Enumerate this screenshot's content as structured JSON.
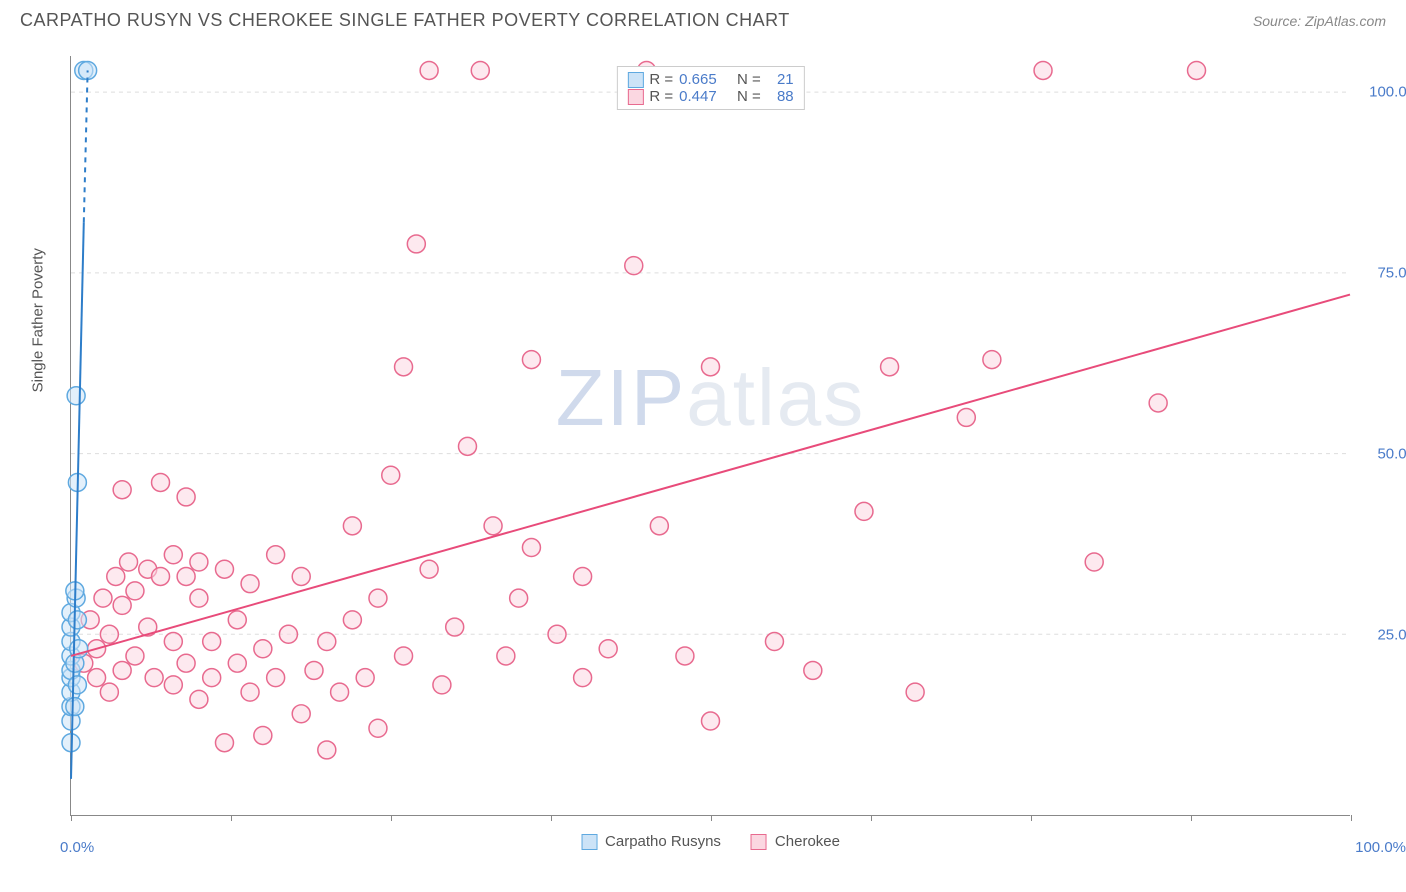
{
  "title": "CARPATHO RUSYN VS CHEROKEE SINGLE FATHER POVERTY CORRELATION CHART",
  "source_label": "Source:",
  "source_name": "ZipAtlas.com",
  "y_axis_label": "Single Father Poverty",
  "watermark": {
    "zip": "ZIP",
    "atlas": "atlas"
  },
  "xlim": [
    0,
    100
  ],
  "ylim": [
    0,
    105
  ],
  "x_ticks": [
    0,
    12.5,
    25,
    37.5,
    50,
    62.5,
    75,
    87.5,
    100
  ],
  "x_tick_labels": {
    "0": "0.0%",
    "100": "100.0%"
  },
  "y_ticks": [
    25,
    50,
    75,
    100
  ],
  "y_tick_labels": {
    "25": "25.0%",
    "50": "50.0%",
    "75": "75.0%",
    "100": "100.0%"
  },
  "grid_color": "#dddddd",
  "axis_color": "#888888",
  "text_color": "#555555",
  "tick_label_color": "#4a7bc9",
  "series": {
    "a": {
      "label": "Carpatho Rusyns",
      "fill": "#cce3f7",
      "stroke": "#5fa9e0",
      "line_color": "#2d7dc9",
      "r_value": "0.665",
      "n_value": "21",
      "trend": {
        "x1": 0,
        "y1": 5,
        "x2": 1.0,
        "y2": 82,
        "x2_dash": 1.3,
        "y2_dash": 103
      },
      "points": [
        [
          0,
          10
        ],
        [
          0,
          13
        ],
        [
          0,
          15
        ],
        [
          0,
          17
        ],
        [
          0,
          19
        ],
        [
          0,
          20
        ],
        [
          0,
          22
        ],
        [
          0,
          24
        ],
        [
          0,
          26
        ],
        [
          0,
          28
        ],
        [
          0.4,
          30
        ],
        [
          0.3,
          21
        ],
        [
          0.5,
          18
        ],
        [
          0.3,
          15
        ],
        [
          0.6,
          23
        ],
        [
          0.5,
          27
        ],
        [
          0.3,
          31
        ],
        [
          0.5,
          46
        ],
        [
          0.4,
          58
        ],
        [
          1.0,
          103
        ],
        [
          1.3,
          103
        ]
      ]
    },
    "b": {
      "label": "Cherokee",
      "fill": "#fbd7e1",
      "stroke": "#e86a8f",
      "line_color": "#e84b7a",
      "r_value": "0.447",
      "n_value": "88",
      "trend": {
        "x1": 0,
        "y1": 22,
        "x2": 100,
        "y2": 72
      },
      "points": [
        [
          1,
          21
        ],
        [
          1.5,
          27
        ],
        [
          2,
          19
        ],
        [
          2,
          23
        ],
        [
          2.5,
          30
        ],
        [
          3,
          17
        ],
        [
          3,
          25
        ],
        [
          3.5,
          33
        ],
        [
          4,
          20
        ],
        [
          4,
          29
        ],
        [
          4,
          45
        ],
        [
          4.5,
          35
        ],
        [
          5,
          22
        ],
        [
          5,
          31
        ],
        [
          6,
          26
        ],
        [
          6,
          34
        ],
        [
          6.5,
          19
        ],
        [
          7,
          33
        ],
        [
          7,
          46
        ],
        [
          8,
          24
        ],
        [
          8,
          36
        ],
        [
          8,
          18
        ],
        [
          9,
          21
        ],
        [
          9,
          33
        ],
        [
          9,
          44
        ],
        [
          10,
          16
        ],
        [
          10,
          30
        ],
        [
          10,
          35
        ],
        [
          11,
          24
        ],
        [
          11,
          19
        ],
        [
          12,
          10
        ],
        [
          12,
          34
        ],
        [
          13,
          21
        ],
        [
          13,
          27
        ],
        [
          14,
          17
        ],
        [
          14,
          32
        ],
        [
          15,
          23
        ],
        [
          15,
          11
        ],
        [
          16,
          19
        ],
        [
          16,
          36
        ],
        [
          17,
          25
        ],
        [
          18,
          14
        ],
        [
          18,
          33
        ],
        [
          19,
          20
        ],
        [
          20,
          9
        ],
        [
          20,
          24
        ],
        [
          21,
          17
        ],
        [
          22,
          27
        ],
        [
          22,
          40
        ],
        [
          23,
          19
        ],
        [
          24,
          12
        ],
        [
          24,
          30
        ],
        [
          25,
          47
        ],
        [
          26,
          22
        ],
        [
          26,
          62
        ],
        [
          27,
          79
        ],
        [
          28,
          34
        ],
        [
          28,
          103
        ],
        [
          29,
          18
        ],
        [
          30,
          26
        ],
        [
          31,
          51
        ],
        [
          32,
          103
        ],
        [
          33,
          40
        ],
        [
          34,
          22
        ],
        [
          35,
          30
        ],
        [
          36,
          63
        ],
        [
          36,
          37
        ],
        [
          38,
          25
        ],
        [
          40,
          19
        ],
        [
          40,
          33
        ],
        [
          42,
          23
        ],
        [
          44,
          76
        ],
        [
          45,
          103
        ],
        [
          46,
          40
        ],
        [
          48,
          22
        ],
        [
          50,
          13
        ],
        [
          50,
          62
        ],
        [
          55,
          24
        ],
        [
          58,
          20
        ],
        [
          62,
          42
        ],
        [
          64,
          62
        ],
        [
          66,
          17
        ],
        [
          70,
          55
        ],
        [
          72,
          63
        ],
        [
          76,
          103
        ],
        [
          80,
          35
        ],
        [
          85,
          57
        ],
        [
          88,
          103
        ]
      ]
    }
  },
  "legend_top": {
    "r_label": "R =",
    "n_label": "N ="
  },
  "marker_radius": 9,
  "marker_stroke_width": 1.5,
  "trend_line_width": 2
}
